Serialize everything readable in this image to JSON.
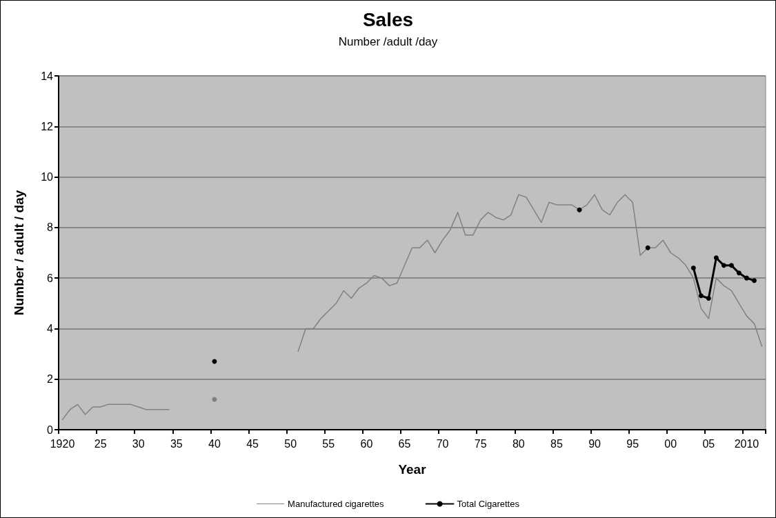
{
  "chart_data": {
    "type": "line",
    "title": "Sales",
    "subtitle": "Number /adult /day",
    "xlabel": "Year",
    "ylabel": "Number / adult / day",
    "categories": [
      "1920",
      null,
      null,
      null,
      null,
      "25",
      null,
      null,
      null,
      null,
      "30",
      null,
      null,
      null,
      null,
      "35",
      null,
      null,
      null,
      null,
      "40",
      null,
      null,
      null,
      null,
      "45",
      null,
      null,
      null,
      null,
      "50",
      null,
      null,
      null,
      null,
      "55",
      null,
      null,
      null,
      null,
      "60",
      null,
      null,
      null,
      null,
      "65",
      null,
      null,
      null,
      null,
      "70",
      null,
      null,
      null,
      null,
      "75",
      null,
      null,
      null,
      null,
      "80",
      null,
      null,
      null,
      null,
      "85",
      null,
      null,
      null,
      null,
      "90",
      null,
      null,
      null,
      null,
      "95",
      null,
      null,
      null,
      null,
      "00",
      null,
      null,
      null,
      null,
      "05",
      null,
      null,
      null,
      null,
      "2010",
      null,
      null
    ],
    "series": [
      {
        "name": "Manufactured cigarettes",
        "color": "#808080",
        "marker": "none",
        "values": [
          0.4,
          0.8,
          1.0,
          0.6,
          0.9,
          0.9,
          1.0,
          1.0,
          1.0,
          1.0,
          0.9,
          0.8,
          0.8,
          0.8,
          0.8,
          null,
          null,
          null,
          null,
          null,
          1.2,
          null,
          null,
          null,
          null,
          null,
          null,
          null,
          null,
          null,
          null,
          3.1,
          4.0,
          4.0,
          4.4,
          4.7,
          5.0,
          5.5,
          5.2,
          5.6,
          5.8,
          6.1,
          6.0,
          5.7,
          5.8,
          6.5,
          7.2,
          7.2,
          7.5,
          7.0,
          7.5,
          7.9,
          8.6,
          7.7,
          7.7,
          8.3,
          8.6,
          8.4,
          8.3,
          8.5,
          9.3,
          9.2,
          8.7,
          8.2,
          9.0,
          8.9,
          8.9,
          8.9,
          8.7,
          8.9,
          9.3,
          8.7,
          8.5,
          9.0,
          9.3,
          9.0,
          6.9,
          7.2,
          7.2,
          7.5,
          7.0,
          6.8,
          6.5,
          6.0,
          4.8,
          4.4,
          6.0,
          5.7,
          5.5,
          5.0,
          4.5,
          4.2,
          3.3
        ]
      },
      {
        "name": "Total Cigarettes",
        "color": "#000000",
        "marker": "circle",
        "values": [
          null,
          null,
          null,
          null,
          null,
          null,
          null,
          null,
          null,
          null,
          null,
          null,
          null,
          null,
          null,
          null,
          null,
          null,
          null,
          null,
          2.7,
          null,
          null,
          null,
          null,
          null,
          null,
          null,
          null,
          null,
          null,
          null,
          null,
          null,
          null,
          null,
          null,
          null,
          null,
          null,
          null,
          null,
          null,
          null,
          null,
          null,
          null,
          null,
          null,
          null,
          null,
          null,
          null,
          null,
          null,
          null,
          null,
          null,
          null,
          null,
          null,
          null,
          null,
          null,
          null,
          null,
          null,
          null,
          8.7,
          null,
          null,
          null,
          null,
          null,
          null,
          null,
          null,
          7.2,
          null,
          null,
          null,
          null,
          null,
          6.4,
          5.3,
          5.2,
          6.8,
          6.5,
          6.5,
          6.2,
          6.0,
          5.9,
          null
        ]
      }
    ],
    "ylim": [
      0,
      14
    ],
    "yticks": [
      0,
      2,
      4,
      6,
      8,
      10,
      12,
      14
    ],
    "grid": "y",
    "legend": "bottom",
    "line_style": "solid"
  }
}
